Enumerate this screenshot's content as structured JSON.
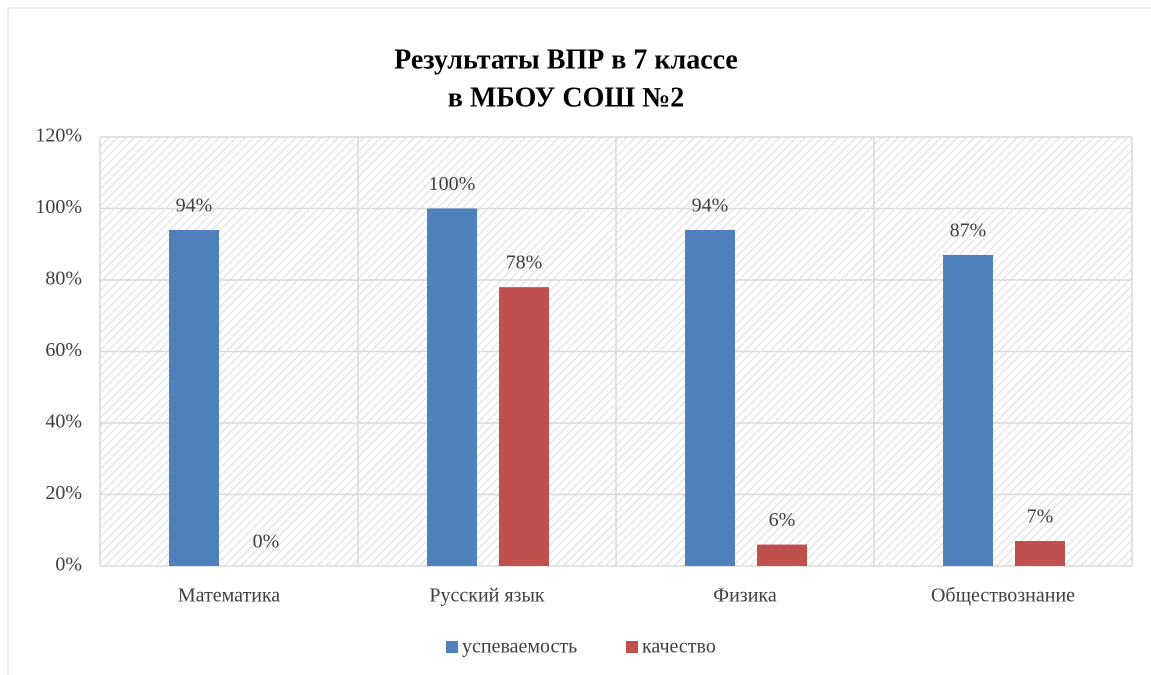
{
  "chart_data": {
    "type": "bar",
    "title": [
      "Результаты ВПР в 7 классе",
      "в МБОУ СОШ №2"
    ],
    "categories": [
      "Математика",
      "Русский язык",
      "Физика",
      "Обществознание"
    ],
    "series": [
      {
        "name": "успеваемость",
        "color": "#4f81bd",
        "values": [
          94,
          100,
          94,
          87
        ],
        "value_labels": [
          "94%",
          "100%",
          "94%",
          "87%"
        ]
      },
      {
        "name": "качество",
        "color": "#c0504d",
        "values": [
          0,
          78,
          6,
          7
        ],
        "value_labels": [
          "0%",
          "78%",
          "6%",
          "7%"
        ]
      }
    ],
    "ylim": [
      0,
      120
    ],
    "yticks": [
      {
        "value": 0,
        "label": "0%"
      },
      {
        "value": 20,
        "label": "20%"
      },
      {
        "value": 40,
        "label": "40%"
      },
      {
        "value": 60,
        "label": "60%"
      },
      {
        "value": 80,
        "label": "80%"
      },
      {
        "value": 100,
        "label": "100%"
      },
      {
        "value": 120,
        "label": "120%"
      }
    ],
    "grid": true,
    "legend": "bottom"
  }
}
